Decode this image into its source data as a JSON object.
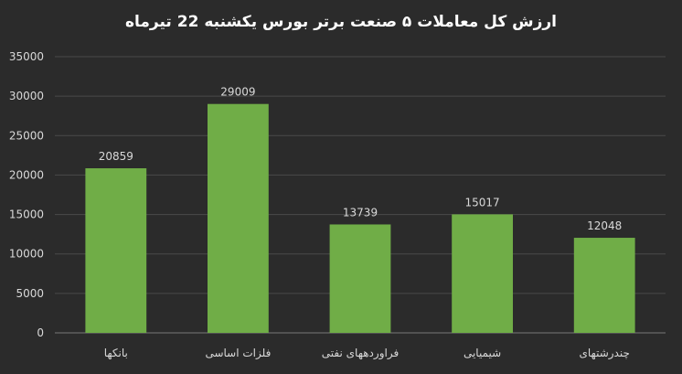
{
  "chart_data": {
    "type": "bar",
    "title": "ارزش کل معاملات ۵ صنعت برتر بورس یکشنبه 22 تیرماه",
    "categories": [
      "بانکها",
      "فلزات اساسی",
      "فراوردههای نفتی",
      "شیمیایی",
      "چندرشتهای"
    ],
    "values": [
      20859,
      29009,
      13739,
      15017,
      12048
    ],
    "ylim": [
      0,
      35000
    ],
    "yticks": [
      0,
      5000,
      10000,
      15000,
      20000,
      25000,
      30000,
      35000
    ],
    "grid": true,
    "bar_color": "#70ad47",
    "data_labels": true
  }
}
